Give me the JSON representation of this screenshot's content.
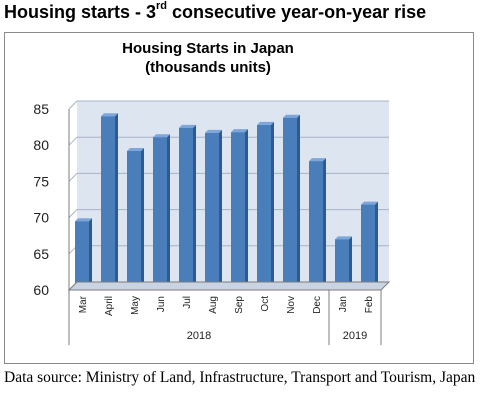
{
  "headline": {
    "prefix": "Housing starts - 3",
    "superscript": "rd",
    "suffix": " consecutive year-on-year rise"
  },
  "source_note": "Data source: Ministry of Land, Infrastructure, Transport and Tourism, Japan",
  "colors": {
    "bar_front": "#4a7ebb",
    "bar_side": "#2c5a93",
    "bar_top": "#7ea6da",
    "plot_bg": "#dde5f0",
    "grid": "#a6b4c6",
    "axis": "#7c7c7c"
  },
  "chart_data": {
    "type": "bar",
    "title_lines": [
      "Housing Starts in Japan",
      "(thousands units)"
    ],
    "categories": [
      "Mar",
      "April",
      "May",
      "Jun",
      "Jul",
      "Aug",
      "Sep",
      "Oct",
      "Nov",
      "Dec",
      "Jan",
      "Feb"
    ],
    "values": [
      69.5,
      84,
      79.2,
      81.1,
      82.4,
      81.7,
      81.8,
      82.8,
      83.8,
      77.8,
      67,
      71.8
    ],
    "groups": [
      {
        "label": "2018",
        "count": 10
      },
      {
        "label": "2019",
        "count": 2
      }
    ],
    "ylim": [
      60,
      85
    ],
    "yticks": [
      60,
      65,
      70,
      75,
      80,
      85
    ],
    "grid": true,
    "legend": false
  }
}
